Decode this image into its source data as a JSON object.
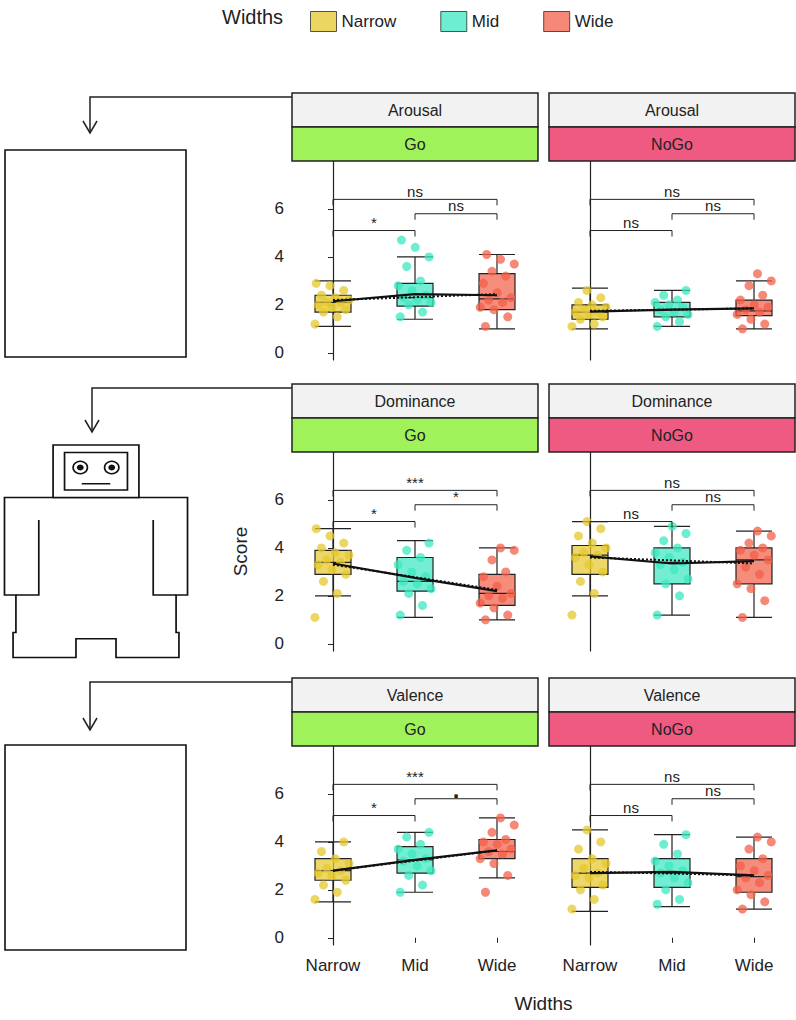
{
  "figure": {
    "legend_title": "Widths",
    "xlabel": "Widths",
    "ylabel": "Score",
    "categories": [
      "Narrow",
      "Mid",
      "Wide"
    ],
    "colors": [
      "#e6c82e",
      "#3ee8c0",
      "#f2604a"
    ],
    "ylim": [
      -0.3,
      8
    ],
    "yticks": [
      0,
      2,
      4,
      6
    ],
    "grid": false
  },
  "chart_data": [
    {
      "type": "boxplot",
      "title": "Arousal",
      "subtitle": "Go",
      "subtitle_color": "#a0f25a",
      "boxes": [
        [
          1.1,
          1.7,
          2.1,
          2.4,
          3.0
        ],
        [
          1.4,
          1.95,
          2.3,
          2.9,
          4.0
        ],
        [
          1.0,
          1.8,
          2.25,
          3.3,
          4.1
        ]
      ],
      "points": [
        [
          1.2,
          1.5,
          1.7,
          1.8,
          1.9,
          2.0,
          2.1,
          2.1,
          2.2,
          2.3,
          2.4,
          2.6,
          2.8,
          2.9
        ],
        [
          1.5,
          1.7,
          2.0,
          2.1,
          2.2,
          2.3,
          2.4,
          2.6,
          2.8,
          3.0,
          3.6,
          4.0,
          4.4,
          4.7
        ],
        [
          1.1,
          1.5,
          1.8,
          1.9,
          2.1,
          2.2,
          2.3,
          2.5,
          2.9,
          3.2,
          3.4,
          3.7,
          3.9,
          4.1
        ]
      ],
      "means": [
        2.15,
        2.45,
        2.4
      ],
      "trend": [
        2.2,
        2.32,
        2.45
      ],
      "comparisons": [
        {
          "pair": [
            "Narrow",
            "Mid"
          ],
          "label": "*"
        },
        {
          "pair": [
            "Mid",
            "Wide"
          ],
          "label": "ns"
        },
        {
          "pair": [
            "Narrow",
            "Wide"
          ],
          "label": "ns"
        }
      ]
    },
    {
      "type": "boxplot",
      "title": "Arousal",
      "subtitle": "NoGo",
      "subtitle_color": "#ee5a82",
      "boxes": [
        [
          1.0,
          1.4,
          1.7,
          2.0,
          2.7
        ],
        [
          1.1,
          1.5,
          1.8,
          2.1,
          2.6
        ],
        [
          1.0,
          1.55,
          1.75,
          2.2,
          3.0
        ]
      ],
      "points": [
        [
          1.1,
          1.2,
          1.4,
          1.5,
          1.6,
          1.7,
          1.7,
          1.8,
          1.9,
          2.0,
          2.1,
          2.3,
          2.6
        ],
        [
          1.1,
          1.3,
          1.5,
          1.6,
          1.7,
          1.8,
          1.9,
          2.0,
          2.1,
          2.2,
          2.4,
          2.6
        ],
        [
          1.0,
          1.2,
          1.4,
          1.6,
          1.7,
          1.8,
          1.9,
          2.0,
          2.2,
          2.4,
          2.8,
          3.0,
          3.3
        ]
      ],
      "means": [
        1.72,
        1.8,
        1.85
      ],
      "trend": [
        1.75,
        1.8,
        1.85
      ],
      "comparisons": [
        {
          "pair": [
            "Narrow",
            "Mid"
          ],
          "label": "ns"
        },
        {
          "pair": [
            "Mid",
            "Wide"
          ],
          "label": "ns"
        },
        {
          "pair": [
            "Narrow",
            "Wide"
          ],
          "label": "ns"
        }
      ]
    },
    {
      "type": "boxplot",
      "title": "Dominance",
      "subtitle": "Go",
      "subtitle_color": "#a0f25a",
      "boxes": [
        [
          2.0,
          2.9,
          3.4,
          3.9,
          4.8
        ],
        [
          1.1,
          2.2,
          2.6,
          3.6,
          4.3
        ],
        [
          1.0,
          1.6,
          2.1,
          2.9,
          4.0
        ]
      ],
      "points": [
        [
          1.1,
          2.1,
          2.6,
          2.9,
          3.1,
          3.3,
          3.4,
          3.5,
          3.7,
          3.8,
          4.0,
          4.2,
          4.5,
          4.8
        ],
        [
          1.2,
          1.6,
          2.1,
          2.3,
          2.5,
          2.6,
          2.8,
          3.0,
          3.3,
          3.6,
          3.9,
          4.2
        ],
        [
          1.0,
          1.2,
          1.5,
          1.7,
          1.9,
          2.0,
          2.1,
          2.4,
          2.8,
          3.0,
          3.5,
          3.9,
          4.0
        ]
      ],
      "means": [
        3.35,
        2.75,
        2.2
      ],
      "trend": [
        3.3,
        2.78,
        2.25
      ],
      "comparisons": [
        {
          "pair": [
            "Narrow",
            "Mid"
          ],
          "label": "*"
        },
        {
          "pair": [
            "Mid",
            "Wide"
          ],
          "label": "*"
        },
        {
          "pair": [
            "Narrow",
            "Wide"
          ],
          "label": "***"
        }
      ]
    },
    {
      "type": "boxplot",
      "title": "Dominance",
      "subtitle": "NoGo",
      "subtitle_color": "#ee5a82",
      "boxes": [
        [
          2.0,
          2.9,
          3.7,
          4.1,
          5.1
        ],
        [
          1.2,
          2.5,
          3.4,
          4.0,
          4.9
        ],
        [
          1.1,
          2.5,
          3.5,
          4.0,
          4.7
        ]
      ],
      "points": [
        [
          1.2,
          2.1,
          2.6,
          3.0,
          3.3,
          3.6,
          3.7,
          3.8,
          4.0,
          4.2,
          4.5,
          4.8,
          5.1
        ],
        [
          1.2,
          2.0,
          2.5,
          2.7,
          3.1,
          3.3,
          3.4,
          3.6,
          3.8,
          4.0,
          4.3,
          4.6,
          4.9
        ],
        [
          1.1,
          1.8,
          2.3,
          2.5,
          2.9,
          3.2,
          3.5,
          3.7,
          3.9,
          4.0,
          4.2,
          4.5,
          4.7
        ]
      ],
      "means": [
        3.65,
        3.35,
        3.45
      ],
      "trend": [
        3.6,
        3.48,
        3.35
      ],
      "comparisons": [
        {
          "pair": [
            "Narrow",
            "Mid"
          ],
          "label": "ns"
        },
        {
          "pair": [
            "Mid",
            "Wide"
          ],
          "label": "ns"
        },
        {
          "pair": [
            "Narrow",
            "Wide"
          ],
          "label": "ns"
        }
      ]
    },
    {
      "type": "boxplot",
      "title": "Valence",
      "subtitle": "Go",
      "subtitle_color": "#a0f25a",
      "boxes": [
        [
          1.5,
          2.4,
          2.8,
          3.3,
          4.0
        ],
        [
          1.9,
          2.7,
          3.25,
          3.8,
          4.4
        ],
        [
          2.5,
          3.3,
          3.6,
          4.1,
          5.0
        ]
      ],
      "points": [
        [
          1.6,
          1.9,
          2.2,
          2.4,
          2.6,
          2.7,
          2.8,
          2.9,
          3.1,
          3.3,
          3.6,
          4.0
        ],
        [
          1.9,
          2.2,
          2.6,
          2.8,
          3.0,
          3.2,
          3.3,
          3.5,
          3.7,
          3.9,
          4.2,
          4.4
        ],
        [
          1.9,
          2.6,
          3.1,
          3.3,
          3.5,
          3.6,
          3.7,
          3.9,
          4.0,
          4.1,
          4.4,
          4.7,
          5.0
        ]
      ],
      "means": [
        2.8,
        3.25,
        3.65
      ],
      "trend": [
        2.8,
        3.22,
        3.65
      ],
      "comparisons": [
        {
          "pair": [
            "Narrow",
            "Mid"
          ],
          "label": "*"
        },
        {
          "pair": [
            "Mid",
            "Wide"
          ],
          "label": "."
        },
        {
          "pair": [
            "Narrow",
            "Wide"
          ],
          "label": "***"
        }
      ]
    },
    {
      "type": "boxplot",
      "title": "Valence",
      "subtitle": "NoGo",
      "subtitle_color": "#ee5a82",
      "boxes": [
        [
          1.1,
          2.1,
          2.7,
          3.3,
          4.5
        ],
        [
          1.3,
          2.1,
          2.7,
          3.3,
          4.3
        ],
        [
          1.2,
          1.9,
          2.55,
          3.3,
          4.2
        ]
      ],
      "points": [
        [
          1.2,
          1.6,
          2.0,
          2.2,
          2.5,
          2.6,
          2.7,
          2.9,
          3.1,
          3.3,
          3.7,
          4.0,
          4.5
        ],
        [
          1.4,
          1.6,
          2.0,
          2.3,
          2.5,
          2.7,
          2.8,
          3.0,
          3.2,
          3.5,
          3.9,
          4.3
        ],
        [
          1.2,
          1.5,
          1.8,
          2.0,
          2.3,
          2.5,
          2.6,
          2.8,
          3.0,
          3.3,
          3.7,
          4.0,
          4.2
        ]
      ],
      "means": [
        2.7,
        2.75,
        2.6
      ],
      "trend": [
        2.75,
        2.68,
        2.6
      ],
      "comparisons": [
        {
          "pair": [
            "Narrow",
            "Mid"
          ],
          "label": "ns"
        },
        {
          "pair": [
            "Mid",
            "Wide"
          ],
          "label": "ns"
        },
        {
          "pair": [
            "Narrow",
            "Wide"
          ],
          "label": "ns"
        }
      ]
    }
  ]
}
